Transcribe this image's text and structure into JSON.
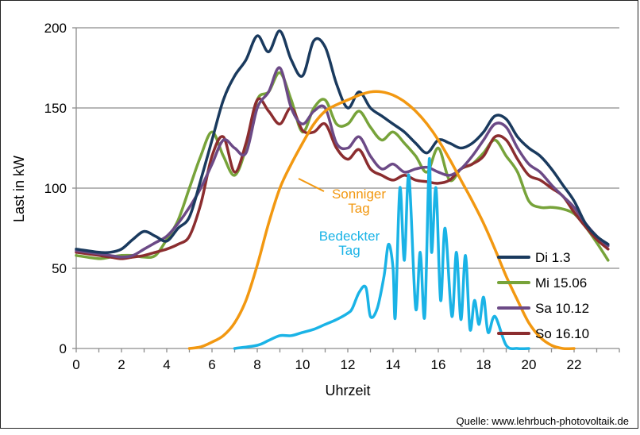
{
  "chart_data": {
    "type": "line",
    "xlabel": "Uhrzeit",
    "ylabel": "Last in kW",
    "xlim": [
      0,
      24
    ],
    "ylim": [
      0,
      200
    ],
    "xticks": [
      "0",
      "2",
      "4",
      "6",
      "8",
      "10",
      "12",
      "14",
      "16",
      "18",
      "20",
      "22"
    ],
    "yticks": [
      "0",
      "50",
      "100",
      "150",
      "200"
    ],
    "grid": "horizontal",
    "legend_position": "right",
    "series": [
      {
        "name": "Di 1.3",
        "color": "#1a3a5e",
        "x": [
          0,
          1,
          1.5,
          2,
          2.5,
          3,
          3.5,
          4,
          4.5,
          5,
          5.5,
          6,
          6.5,
          7,
          7.5,
          8,
          8.5,
          9,
          9.5,
          10,
          10.5,
          11,
          11.5,
          12,
          12.5,
          13,
          13.5,
          14,
          14.5,
          15,
          15.5,
          16,
          16.5,
          17,
          17.5,
          18,
          18.5,
          19,
          19.5,
          20,
          20.5,
          21,
          21.5,
          22,
          22.5,
          23,
          23.5
        ],
        "y": [
          62,
          60,
          60,
          62,
          68,
          73,
          70,
          67,
          75,
          82,
          105,
          130,
          155,
          170,
          180,
          195,
          185,
          198,
          180,
          170,
          192,
          188,
          165,
          150,
          160,
          150,
          145,
          140,
          135,
          128,
          122,
          130,
          128,
          125,
          128,
          135,
          145,
          143,
          132,
          125,
          120,
          112,
          102,
          92,
          78,
          70,
          65
        ]
      },
      {
        "name": "Mi 15.06",
        "color": "#77a33a",
        "x": [
          0,
          1,
          1.5,
          2,
          2.5,
          3,
          3.5,
          4,
          4.5,
          5,
          5.5,
          6,
          6.5,
          7,
          7.5,
          8,
          8.5,
          9,
          9.5,
          10,
          10.5,
          11,
          11.5,
          12,
          12.5,
          13,
          13.5,
          14,
          14.5,
          15,
          15.5,
          16,
          16.5,
          17,
          17.5,
          18,
          18.5,
          19,
          19.5,
          20,
          20.5,
          21,
          21.5,
          22,
          22.5,
          23,
          23.5
        ],
        "y": [
          58,
          56,
          57,
          58,
          58,
          57,
          58,
          68,
          80,
          100,
          120,
          135,
          120,
          108,
          125,
          155,
          160,
          172,
          155,
          135,
          150,
          155,
          140,
          140,
          148,
          138,
          130,
          135,
          128,
          120,
          110,
          125,
          105,
          112,
          115,
          122,
          130,
          120,
          110,
          92,
          88,
          88,
          87,
          84,
          76,
          66,
          55
        ]
      },
      {
        "name": "Sa 10.12",
        "color": "#6c4a86",
        "x": [
          0,
          1,
          1.5,
          2,
          2.5,
          3,
          3.5,
          4,
          4.5,
          5,
          5.5,
          6,
          6.5,
          7,
          7.5,
          8,
          8.5,
          9,
          9.5,
          10,
          10.5,
          11,
          11.5,
          12,
          12.5,
          13,
          13.5,
          14,
          14.5,
          15,
          15.5,
          16,
          16.5,
          17,
          17.5,
          18,
          18.5,
          19,
          19.5,
          20,
          20.5,
          21,
          21.5,
          22,
          22.5,
          23,
          23.5
        ],
        "y": [
          61,
          59,
          58,
          57,
          58,
          62,
          66,
          70,
          78,
          88,
          100,
          115,
          130,
          125,
          122,
          150,
          160,
          175,
          150,
          140,
          148,
          150,
          128,
          125,
          132,
          120,
          112,
          115,
          110,
          112,
          113,
          110,
          108,
          112,
          120,
          130,
          140,
          138,
          125,
          115,
          110,
          102,
          95,
          88,
          78,
          70,
          64
        ]
      },
      {
        "name": "So 16.10",
        "color": "#8b2d2f",
        "x": [
          0,
          1,
          1.5,
          2,
          2.5,
          3,
          3.5,
          4,
          4.5,
          5,
          5.5,
          6,
          6.5,
          7,
          7.5,
          8,
          8.5,
          9,
          9.5,
          10,
          10.5,
          11,
          11.5,
          12,
          12.5,
          13,
          13.5,
          14,
          14.5,
          15,
          15.5,
          16,
          16.5,
          17,
          17.5,
          18,
          18.5,
          19,
          19.5,
          20,
          20.5,
          21,
          21.5,
          22,
          22.5,
          23,
          23.5
        ],
        "y": [
          60,
          58,
          57,
          56,
          57,
          58,
          60,
          62,
          65,
          70,
          90,
          120,
          132,
          110,
          128,
          155,
          148,
          140,
          150,
          136,
          135,
          140,
          125,
          118,
          124,
          112,
          108,
          105,
          108,
          105,
          104,
          103,
          105,
          112,
          115,
          120,
          132,
          130,
          118,
          108,
          105,
          100,
          95,
          85,
          76,
          68,
          62
        ]
      },
      {
        "color": "#f29811",
        "x": [
          5,
          5.5,
          6,
          6.5,
          7,
          7.5,
          8,
          8.5,
          9,
          9.5,
          10,
          10.5,
          11,
          11.5,
          12,
          12.5,
          13,
          13.5,
          14,
          14.5,
          15,
          15.5,
          16,
          16.5,
          17,
          17.5,
          18,
          18.5,
          19,
          19.5,
          20,
          20.5,
          21,
          21.5,
          22
        ],
        "y": [
          0,
          1,
          4,
          8,
          16,
          30,
          52,
          78,
          100,
          115,
          128,
          140,
          148,
          152,
          155,
          158,
          160,
          160,
          158,
          154,
          148,
          140,
          130,
          118,
          105,
          92,
          78,
          62,
          45,
          30,
          16,
          7,
          2,
          0,
          0
        ]
      },
      {
        "color": "#1ab3e6",
        "x": [
          7,
          8,
          8.5,
          9,
          9.5,
          10,
          10.5,
          11,
          11.5,
          12,
          12.2,
          12.5,
          12.8,
          13,
          13.3,
          13.6,
          13.8,
          14,
          14.1,
          14.3,
          14.5,
          14.7,
          15,
          15.2,
          15.4,
          15.6,
          15.7,
          15.9,
          16.1,
          16.3,
          16.6,
          16.8,
          17,
          17.2,
          17.4,
          17.6,
          17.8,
          18,
          18.2,
          18.5,
          19,
          19.5,
          20
        ],
        "y": [
          0,
          2,
          5,
          8,
          8,
          10,
          12,
          15,
          18,
          22,
          25,
          35,
          38,
          20,
          25,
          45,
          65,
          50,
          20,
          100,
          55,
          108,
          25,
          60,
          20,
          118,
          60,
          100,
          30,
          75,
          20,
          60,
          18,
          58,
          12,
          30,
          15,
          32,
          10,
          20,
          2,
          0,
          0
        ]
      }
    ],
    "annotations": [
      {
        "text": [
          "Sonniger",
          "Tag"
        ],
        "color": "#f29811"
      },
      {
        "text": [
          "Bedeckter",
          "Tag"
        ],
        "color": "#1ab3e6"
      }
    ]
  },
  "source_text": "Quelle: www.lehrbuch-photovoltaik.de"
}
